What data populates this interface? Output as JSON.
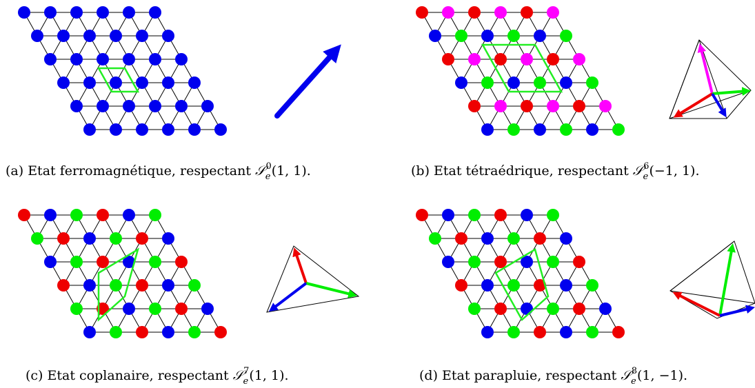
{
  "colors": {
    "blue": "#0000ee",
    "red": "#ee0000",
    "green": "#00ee00",
    "magenta": "#ff00ff",
    "cell": "#22ee22",
    "line": "#000000"
  },
  "panels": [
    {
      "id": "a",
      "caption_prefix": "(a) Etat ferromagnétique, respectant ",
      "caption_sup": "0",
      "caption_args": "(1, 1).",
      "dot_colors": [
        [
          "blue",
          "blue",
          "blue",
          "blue",
          "blue",
          "blue"
        ],
        [
          "blue",
          "blue",
          "blue",
          "blue",
          "blue",
          "blue"
        ],
        [
          "blue",
          "blue",
          "blue",
          "blue",
          "blue",
          "blue"
        ],
        [
          "blue",
          "blue",
          "blue",
          "blue",
          "blue",
          "blue"
        ],
        [
          "blue",
          "blue",
          "blue",
          "blue",
          "blue",
          "blue"
        ],
        [
          "blue",
          "blue",
          "blue",
          "blue",
          "blue",
          "blue"
        ]
      ],
      "magnetic_cell": "1x1",
      "spin_arrows": [
        {
          "color": "blue"
        }
      ]
    },
    {
      "id": "b",
      "caption_prefix": "(b) Etat tétraédrique, respectant ",
      "caption_sup": "6",
      "caption_args": "(−1, 1).",
      "dot_colors": [
        [
          "red",
          "magenta",
          "red",
          "magenta",
          "red",
          "magenta"
        ],
        [
          "blue",
          "green",
          "blue",
          "green",
          "blue",
          "green"
        ],
        [
          "red",
          "magenta",
          "red",
          "magenta",
          "red",
          "magenta"
        ],
        [
          "blue",
          "green",
          "blue",
          "green",
          "blue",
          "green"
        ],
        [
          "red",
          "magenta",
          "red",
          "magenta",
          "red",
          "magenta"
        ],
        [
          "blue",
          "green",
          "blue",
          "green",
          "blue",
          "green"
        ]
      ],
      "magnetic_cell": "2x2",
      "spin_arrows": [
        {
          "color": "magenta"
        },
        {
          "color": "green"
        },
        {
          "color": "red"
        },
        {
          "color": "blue"
        }
      ]
    },
    {
      "id": "c",
      "caption_prefix": "(c) Etat coplanaire, respectant ",
      "caption_sup": "7",
      "caption_args": "(1, 1).",
      "dot_colors": [
        [
          "red",
          "blue",
          "green",
          "red",
          "blue",
          "green"
        ],
        [
          "green",
          "red",
          "blue",
          "green",
          "red",
          "blue"
        ],
        [
          "blue",
          "green",
          "red",
          "blue",
          "green",
          "red"
        ],
        [
          "red",
          "blue",
          "green",
          "red",
          "blue",
          "green"
        ],
        [
          "green",
          "red",
          "blue",
          "green",
          "red",
          "blue"
        ],
        [
          "blue",
          "green",
          "red",
          "blue",
          "green",
          "red"
        ]
      ],
      "magnetic_cell": "sqrt3",
      "spin_arrows": [
        {
          "color": "red"
        },
        {
          "color": "green"
        },
        {
          "color": "blue"
        }
      ]
    },
    {
      "id": "d",
      "caption_prefix": "(d) Etat parapluie, respectant ",
      "caption_sup": "8",
      "caption_args": "(1, −1).",
      "dot_colors": [
        [
          "red",
          "blue",
          "green",
          "red",
          "blue",
          "green"
        ],
        [
          "green",
          "red",
          "blue",
          "green",
          "red",
          "blue"
        ],
        [
          "blue",
          "green",
          "red",
          "blue",
          "green",
          "red"
        ],
        [
          "red",
          "blue",
          "green",
          "red",
          "blue",
          "green"
        ],
        [
          "green",
          "red",
          "blue",
          "green",
          "red",
          "blue"
        ],
        [
          "blue",
          "green",
          "red",
          "blue",
          "green",
          "red"
        ]
      ],
      "magnetic_cell": "sqrt3",
      "spin_arrows": [
        {
          "color": "red"
        },
        {
          "color": "green"
        },
        {
          "color": "blue"
        }
      ]
    }
  ]
}
